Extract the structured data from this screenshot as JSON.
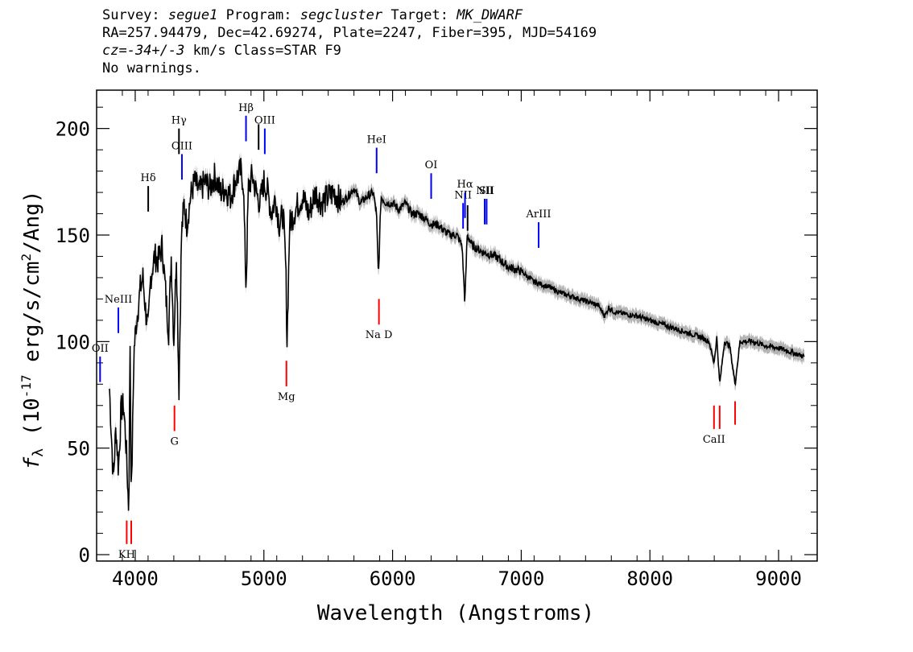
{
  "header": {
    "line1": {
      "survey_label": "Survey:",
      "survey": "segue1",
      "program_label": "Program:",
      "program": "segcluster",
      "target_label": "Target:",
      "target": "MK_DWARF"
    },
    "line2": "RA=257.94479, Dec=42.69274, Plate=2247, Fiber=395, MJD=54169",
    "line3": {
      "cz_label": "cz=",
      "cz_value": "-34+/-3",
      "rest": " km/s Class=STAR F9"
    },
    "line4": "No warnings."
  },
  "chart_data": {
    "type": "line",
    "xlabel": "Wavelength (Angstroms)",
    "ylabel_prefix": "f",
    "ylabel_sub": "λ",
    "ylabel_main": " (10",
    "ylabel_exp": "-17",
    "ylabel_mid": " erg/s/cm",
    "ylabel_exp2": "2",
    "ylabel_end": "/Ang)",
    "xlim": [
      3700,
      9300
    ],
    "ylim": [
      -3,
      218
    ],
    "x_ticks": [
      4000,
      5000,
      6000,
      7000,
      8000,
      9000
    ],
    "y_ticks": [
      0,
      50,
      100,
      150,
      200
    ],
    "x_tick_labels": [
      "4000",
      "5000",
      "6000",
      "7000",
      "8000",
      "9000"
    ],
    "y_tick_labels": [
      "0",
      "50",
      "100",
      "150",
      "200"
    ],
    "colors": {
      "spectrum": "#000000",
      "error": "#b4b4b4",
      "emission": "#0000ff",
      "absorption": "#ff0000",
      "balmer": "#000000"
    },
    "spectrum": {
      "x": [
        3800,
        3830,
        3850,
        3870,
        3890,
        3910,
        3930,
        3950,
        3960,
        3970,
        3990,
        4010,
        4040,
        4060,
        4080,
        4101,
        4120,
        4150,
        4180,
        4210,
        4240,
        4260,
        4280,
        4300,
        4320,
        4340,
        4360,
        4380,
        4400,
        4430,
        4460,
        4500,
        4540,
        4580,
        4620,
        4660,
        4700,
        4740,
        4780,
        4820,
        4840,
        4861,
        4880,
        4910,
        4940,
        4970,
        5000,
        5030,
        5060,
        5090,
        5120,
        5150,
        5170,
        5180,
        5200,
        5230,
        5270,
        5300,
        5350,
        5400,
        5450,
        5500,
        5550,
        5600,
        5650,
        5700,
        5750,
        5800,
        5850,
        5875,
        5890,
        5910,
        5950,
        6000,
        6050,
        6100,
        6150,
        6200,
        6250,
        6300,
        6350,
        6400,
        6450,
        6500,
        6540,
        6562,
        6580,
        6620,
        6700,
        6800,
        6900,
        7000,
        7100,
        7200,
        7300,
        7400,
        7500,
        7600,
        7650,
        7680,
        7720,
        7800,
        7900,
        8000,
        8100,
        8200,
        8300,
        8400,
        8460,
        8498,
        8520,
        8542,
        8580,
        8620,
        8662,
        8700,
        8800,
        8900,
        9000,
        9100,
        9200
      ],
      "y": [
        78,
        35,
        60,
        40,
        68,
        70,
        50,
        20,
        100,
        25,
        95,
        110,
        125,
        130,
        115,
        105,
        130,
        140,
        138,
        145,
        120,
        105,
        140,
        100,
        142,
        78,
        150,
        165,
        155,
        168,
        175,
        170,
        175,
        172,
        178,
        170,
        172,
        168,
        176,
        180,
        175,
        125,
        172,
        178,
        170,
        165,
        175,
        170,
        160,
        168,
        155,
        160,
        135,
        100,
        155,
        160,
        165,
        168,
        160,
        170,
        165,
        168,
        170,
        165,
        168,
        172,
        165,
        168,
        170,
        160,
        130,
        168,
        165,
        165,
        162,
        165,
        160,
        160,
        158,
        155,
        155,
        152,
        150,
        150,
        145,
        118,
        150,
        145,
        142,
        140,
        135,
        133,
        128,
        126,
        123,
        121,
        119,
        117,
        112,
        116,
        114,
        113,
        112,
        110,
        108,
        106,
        104,
        102,
        100,
        90,
        102,
        80,
        100,
        98,
        80,
        100,
        100,
        98,
        97,
        95,
        93
      ]
    },
    "lines": [
      {
        "label": "OII",
        "x": 3727,
        "y0": 81,
        "y1": 93,
        "color": "emission"
      },
      {
        "label": "NeIII",
        "x": 3869,
        "y0": 104,
        "y1": 116,
        "color": "emission"
      },
      {
        "label": "KH",
        "x": 3934,
        "y0": 5,
        "y1": 16,
        "color": "absorption"
      },
      {
        "label": "",
        "x": 3969,
        "y0": 5,
        "y1": 16,
        "color": "absorption"
      },
      {
        "label": "Hδ",
        "x": 4101,
        "y0": 161,
        "y1": 173,
        "color": "balmer"
      },
      {
        "label": "G",
        "x": 4305,
        "y0": 58,
        "y1": 70,
        "color": "absorption"
      },
      {
        "label": "Hγ",
        "x": 4340,
        "y0": 188,
        "y1": 200,
        "color": "balmer"
      },
      {
        "label": "OIII",
        "x": 4363,
        "y0": 176,
        "y1": 188,
        "color": "emission"
      },
      {
        "label": "Hβ",
        "x": 4861,
        "y0": 194,
        "y1": 206,
        "color": "emission"
      },
      {
        "label": "",
        "x": 4959,
        "y0": 190,
        "y1": 202,
        "color": "balmer"
      },
      {
        "label": "OIII",
        "x": 5007,
        "y0": 188,
        "y1": 200,
        "color": "emission"
      },
      {
        "label": "Mg",
        "x": 5175,
        "y0": 79,
        "y1": 91,
        "color": "absorption"
      },
      {
        "label": "Na D",
        "x": 5894,
        "y0": 108,
        "y1": 120,
        "color": "absorption"
      },
      {
        "label": "HeI",
        "x": 5876,
        "y0": 179,
        "y1": 191,
        "color": "emission"
      },
      {
        "label": "OI",
        "x": 6300,
        "y0": 167,
        "y1": 179,
        "color": "emission"
      },
      {
        "label": "NII",
        "x": 6548,
        "y0": 153,
        "y1": 165,
        "color": "emission"
      },
      {
        "label": "Hα",
        "x": 6563,
        "y0": 158,
        "y1": 170,
        "color": "emission"
      },
      {
        "label": "",
        "x": 6583,
        "y0": 152,
        "y1": 164,
        "color": "balmer"
      },
      {
        "label": "NII",
        "x": 6716,
        "y0": 155,
        "y1": 167,
        "color": "emission"
      },
      {
        "label": "SII",
        "x": 6731,
        "y0": 155,
        "y1": 167,
        "color": "emission"
      },
      {
        "label": "ArIII",
        "x": 7135,
        "y0": 144,
        "y1": 156,
        "color": "emission"
      },
      {
        "label": "CaII",
        "x": 8498,
        "y0": 59,
        "y1": 70,
        "color": "absorption"
      },
      {
        "label": "",
        "x": 8542,
        "y0": 59,
        "y1": 70,
        "color": "absorption"
      },
      {
        "label": "",
        "x": 8662,
        "y0": 61,
        "y1": 72,
        "color": "absorption"
      }
    ]
  }
}
